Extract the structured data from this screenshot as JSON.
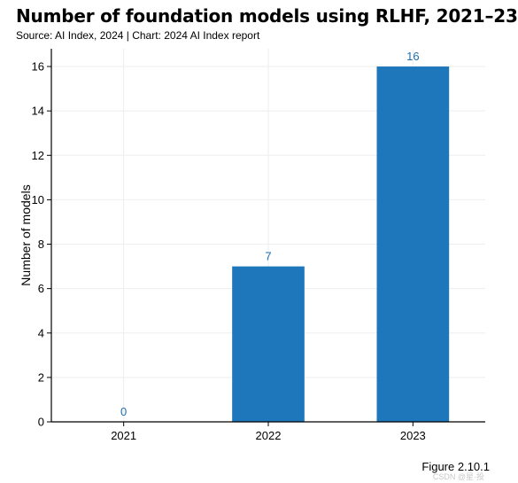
{
  "header": {
    "title": "Number of foundation models using RLHF, 2021–23",
    "subtitle": "Source: AI Index, 2024 | Chart: 2024 AI Index report"
  },
  "footer": {
    "figure_label": "Figure 2.10.1",
    "watermark": "CSDN @星·投"
  },
  "colors": {
    "bar": "#1f77bb",
    "data_label": "#1f6fb0",
    "grid": "#eeeeee",
    "axis": "#000000"
  },
  "chart_data": {
    "type": "bar",
    "categories": [
      "2021",
      "2022",
      "2023"
    ],
    "values": [
      0,
      7,
      16
    ],
    "data_labels": [
      "0",
      "7",
      "16"
    ],
    "xlabel": "",
    "ylabel": "Number of models",
    "ylim": [
      0,
      16.8
    ],
    "yticks": [
      0,
      2,
      4,
      6,
      8,
      10,
      12,
      14,
      16
    ],
    "grid": true,
    "legend": "none"
  }
}
